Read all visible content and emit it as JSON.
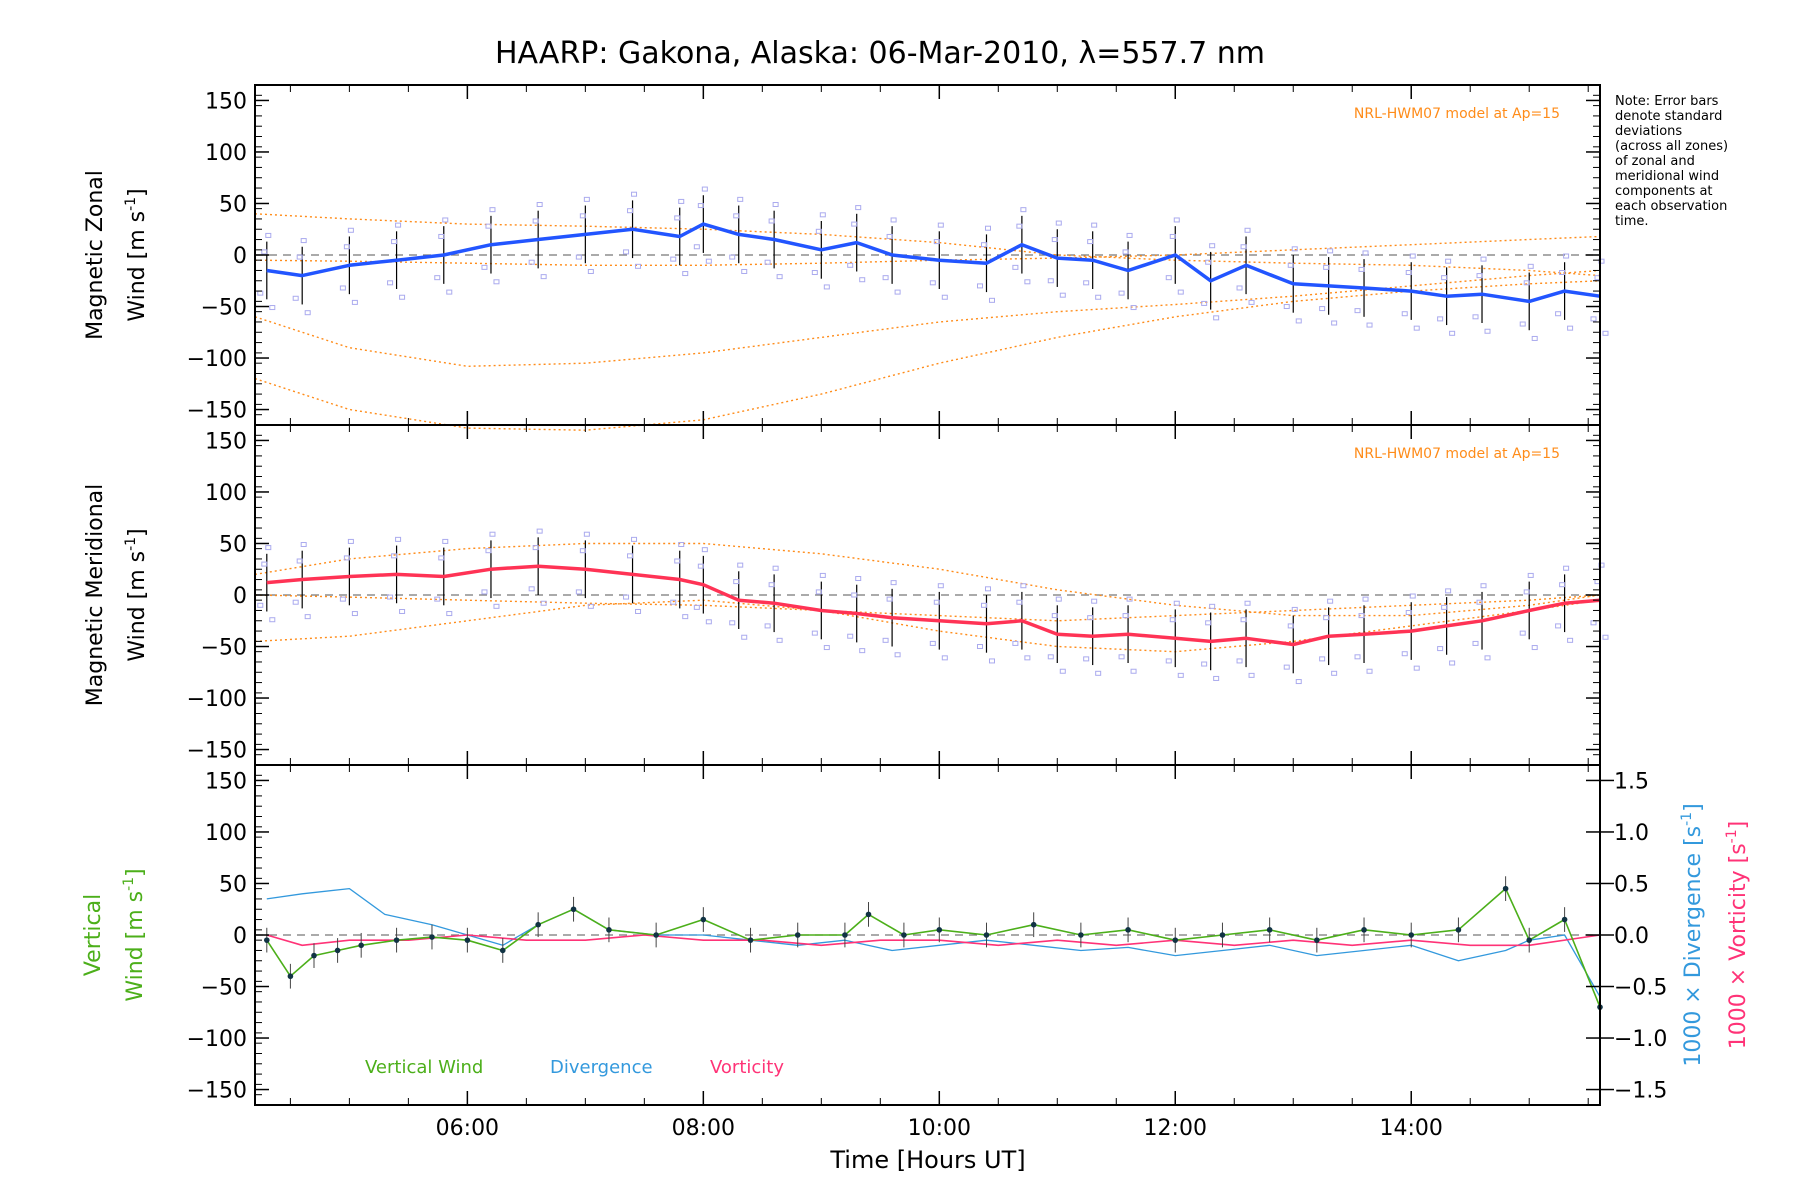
{
  "title": "HAARP: Gakona,  Alaska: 06-Mar-2010, λ=557.7 nm",
  "note_lines": [
    "Note: Error bars",
    "denote standard",
    "deviations",
    "(across all zones)",
    "of zonal and",
    "meridional wind",
    "components at",
    "each observation",
    "time."
  ],
  "colors": {
    "zonal": "#2255ff",
    "meridional": "#ff3355",
    "model": "#ff8c1a",
    "vertical": "#4caf1a",
    "divergence": "#3399dd",
    "vorticity": "#ff3377",
    "scatter": "#aaaaee",
    "zero_line": "#777777"
  },
  "chart_data": [
    {
      "type": "line",
      "panel": "zonal",
      "ylabel_line1": "Magnetic Zonal",
      "ylabel_line2": "Wind [m s",
      "ylabel_sup": "-1",
      "ylabel_close": "]",
      "model_label": "NRL-HWM07 model at Ap=15",
      "ylim": [
        -165,
        165
      ],
      "yticks": [
        "150",
        "100",
        "50",
        "0",
        "−50",
        "−100",
        "−150"
      ],
      "ytick_values": [
        150,
        100,
        50,
        0,
        -50,
        -100,
        -150
      ],
      "x": [
        4.3,
        4.6,
        5.0,
        5.4,
        5.8,
        6.2,
        6.6,
        7.0,
        7.4,
        7.8,
        8.0,
        8.3,
        8.6,
        9.0,
        9.3,
        9.6,
        10.0,
        10.4,
        10.7,
        11.0,
        11.3,
        11.6,
        12.0,
        12.3,
        12.6,
        13.0,
        13.3,
        13.6,
        14.0,
        14.3,
        14.6,
        15.0,
        15.3,
        15.6
      ],
      "values": [
        -15,
        -20,
        -10,
        -5,
        0,
        10,
        15,
        20,
        25,
        18,
        30,
        20,
        15,
        5,
        12,
        0,
        -5,
        -8,
        10,
        -3,
        -5,
        -15,
        0,
        -25,
        -10,
        -28,
        -30,
        -32,
        -35,
        -40,
        -38,
        -45,
        -35,
        -40
      ],
      "model_curves": [
        {
          "x": [
            4.2,
            5.0,
            6.0,
            7.0,
            8.0,
            9.0,
            10.0,
            11.0,
            12.0,
            13.0,
            14.0,
            15.0,
            15.6
          ],
          "values": [
            40,
            35,
            30,
            28,
            25,
            20,
            12,
            0,
            -5,
            -8,
            -10,
            -15,
            -20
          ]
        },
        {
          "x": [
            4.2,
            5.0,
            6.0,
            7.0,
            8.0,
            9.0,
            10.0,
            11.0,
            12.0,
            13.0,
            14.0,
            15.0,
            15.6
          ],
          "values": [
            -5,
            -6,
            -8,
            -10,
            -10,
            -8,
            -5,
            -3,
            0,
            5,
            10,
            15,
            18
          ]
        },
        {
          "x": [
            4.2,
            5.0,
            6.0,
            7.0,
            8.0,
            9.0,
            10.0,
            11.0,
            12.0,
            13.0,
            14.0,
            15.0,
            15.6
          ],
          "values": [
            -60,
            -90,
            -108,
            -105,
            -95,
            -80,
            -65,
            -55,
            -48,
            -40,
            -30,
            -20,
            -15
          ]
        },
        {
          "x": [
            4.2,
            5.0,
            6.0,
            7.0,
            8.0,
            9.0,
            10.0,
            11.0,
            12.0,
            13.0,
            14.0,
            15.0,
            15.6
          ],
          "values": [
            -120,
            -150,
            -168,
            -170,
            -160,
            -135,
            -105,
            -80,
            -60,
            -45,
            -35,
            -28,
            -25
          ]
        }
      ]
    },
    {
      "type": "line",
      "panel": "meridional",
      "ylabel_line1": "Magnetic Meridional",
      "ylabel_line2": "Wind [m s",
      "ylabel_sup": "-1",
      "ylabel_close": "]",
      "model_label": "NRL-HWM07 model at Ap=15",
      "ylim": [
        -165,
        165
      ],
      "yticks": [
        "150",
        "100",
        "50",
        "0",
        "−50",
        "−100",
        "−150"
      ],
      "ytick_values": [
        150,
        100,
        50,
        0,
        -50,
        -100,
        -150
      ],
      "x": [
        4.3,
        4.6,
        5.0,
        5.4,
        5.8,
        6.2,
        6.6,
        7.0,
        7.4,
        7.8,
        8.0,
        8.3,
        8.6,
        9.0,
        9.3,
        9.6,
        10.0,
        10.4,
        10.7,
        11.0,
        11.3,
        11.6,
        12.0,
        12.3,
        12.6,
        13.0,
        13.3,
        13.6,
        14.0,
        14.3,
        14.6,
        15.0,
        15.3,
        15.6
      ],
      "values": [
        12,
        15,
        18,
        20,
        18,
        25,
        28,
        25,
        20,
        15,
        10,
        -5,
        -8,
        -15,
        -18,
        -22,
        -25,
        -28,
        -25,
        -38,
        -40,
        -38,
        -42,
        -45,
        -42,
        -48,
        -40,
        -38,
        -35,
        -30,
        -25,
        -15,
        -8,
        -5
      ],
      "model_curves": [
        {
          "x": [
            4.2,
            5.0,
            6.0,
            7.0,
            8.0,
            9.0,
            10.0,
            11.0,
            12.0,
            13.0,
            14.0,
            15.0,
            15.6
          ],
          "values": [
            20,
            35,
            45,
            50,
            50,
            40,
            25,
            5,
            -10,
            -20,
            -20,
            -10,
            0
          ]
        },
        {
          "x": [
            4.2,
            5.0,
            6.0,
            7.0,
            8.0,
            9.0,
            10.0,
            11.0,
            12.0,
            13.0,
            14.0,
            15.0,
            15.6
          ],
          "values": [
            -45,
            -40,
            -25,
            -10,
            -5,
            -15,
            -35,
            -50,
            -55,
            -45,
            -30,
            -15,
            -5
          ]
        },
        {
          "x": [
            4.2,
            5.0,
            6.0,
            7.0,
            8.0,
            9.0,
            10.0,
            11.0,
            12.0,
            13.0,
            14.0,
            15.0,
            15.6
          ],
          "values": [
            0,
            -2,
            -5,
            -8,
            -10,
            -15,
            -20,
            -25,
            -20,
            -15,
            -10,
            -5,
            0
          ]
        }
      ]
    },
    {
      "type": "line",
      "panel": "vertical",
      "ylabel_line1": "Vertical",
      "ylabel_line2": "Wind [m s",
      "ylabel_sup": "-1",
      "ylabel_close": "]",
      "ylim": [
        -165,
        165
      ],
      "yticks": [
        "150",
        "100",
        "50",
        "0",
        "−50",
        "−100",
        "−150"
      ],
      "ytick_values": [
        150,
        100,
        50,
        0,
        -50,
        -100,
        -150
      ],
      "y2lim": [
        -1.65,
        1.65
      ],
      "y2ticks": [
        "1.5",
        "1.0",
        "0.5",
        "0.0",
        "−0.5",
        "−1.0",
        "−1.5"
      ],
      "y2tick_values": [
        1.5,
        1.0,
        0.5,
        0.0,
        -0.5,
        -1.0,
        -1.5
      ],
      "y2label_div": "1000 × Divergence [s",
      "y2label_vort": "1000 × Vorticity [s",
      "y2label_sup": "-1",
      "y2label_close": "]",
      "legend": [
        "Vertical Wind",
        "Divergence",
        "Vorticity"
      ],
      "series": [
        {
          "name": "Vertical Wind",
          "x": [
            4.3,
            4.5,
            4.7,
            4.9,
            5.1,
            5.4,
            5.7,
            6.0,
            6.3,
            6.6,
            6.9,
            7.2,
            7.6,
            8.0,
            8.4,
            8.8,
            9.2,
            9.4,
            9.7,
            10.0,
            10.4,
            10.8,
            11.2,
            11.6,
            12.0,
            12.4,
            12.8,
            13.2,
            13.6,
            14.0,
            14.4,
            14.8,
            15.0,
            15.3,
            15.6
          ],
          "values": [
            -5,
            -40,
            -20,
            -15,
            -10,
            -5,
            -2,
            -5,
            -15,
            10,
            25,
            5,
            0,
            15,
            -5,
            0,
            0,
            20,
            0,
            5,
            0,
            10,
            0,
            5,
            -5,
            0,
            5,
            -5,
            5,
            0,
            5,
            45,
            -5,
            15,
            -70
          ]
        },
        {
          "name": "Divergence",
          "x": [
            4.3,
            4.6,
            5.0,
            5.3,
            5.7,
            6.0,
            6.3,
            6.6,
            6.9,
            7.2,
            7.6,
            8.0,
            8.4,
            8.8,
            9.2,
            9.6,
            10.0,
            10.4,
            10.8,
            11.2,
            11.6,
            12.0,
            12.4,
            12.8,
            13.2,
            13.6,
            14.0,
            14.4,
            14.8,
            15.0,
            15.3,
            15.6
          ],
          "values": [
            0.35,
            0.4,
            0.45,
            0.2,
            0.1,
            0.0,
            -0.1,
            0.1,
            0.25,
            0.05,
            0.0,
            0.0,
            -0.05,
            -0.1,
            -0.05,
            -0.15,
            -0.1,
            -0.05,
            -0.1,
            -0.15,
            -0.12,
            -0.2,
            -0.15,
            -0.1,
            -0.2,
            -0.15,
            -0.1,
            -0.25,
            -0.15,
            -0.05,
            0.0,
            -0.6
          ]
        },
        {
          "name": "Vorticity",
          "x": [
            4.3,
            4.6,
            5.0,
            5.5,
            6.0,
            6.5,
            7.0,
            7.5,
            8.0,
            8.5,
            9.0,
            9.5,
            10.0,
            10.5,
            11.0,
            11.5,
            12.0,
            12.5,
            13.0,
            13.5,
            14.0,
            14.5,
            15.0,
            15.6
          ],
          "values": [
            0.0,
            -0.1,
            -0.05,
            -0.05,
            0.0,
            -0.05,
            -0.05,
            0.0,
            -0.05,
            -0.05,
            -0.1,
            -0.05,
            -0.05,
            -0.1,
            -0.05,
            -0.1,
            -0.05,
            -0.1,
            -0.05,
            -0.1,
            -0.05,
            -0.1,
            -0.1,
            0.0
          ]
        }
      ]
    }
  ],
  "xaxis": {
    "xlim": [
      4.2,
      15.6
    ],
    "ticks": [
      "06:00",
      "08:00",
      "10:00",
      "12:00",
      "14:00"
    ],
    "tick_values": [
      6,
      8,
      10,
      12,
      14
    ],
    "xlabel": "Time [Hours UT]"
  }
}
